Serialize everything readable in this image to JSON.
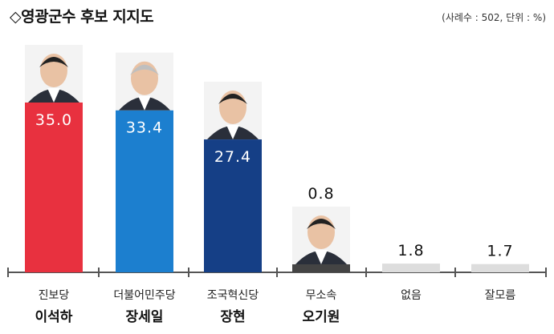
{
  "chart_data": {
    "type": "bar",
    "title": "◇영광군수 후보 지지도",
    "note": "(사례수 : 502, 단위 : %)",
    "categories": [
      "진보당",
      "더불어민주당",
      "조국혁신당",
      "무소속",
      "없음",
      "잘모름"
    ],
    "candidates": [
      "이석하",
      "장세일",
      "장현",
      "오기원",
      "",
      ""
    ],
    "values": [
      35.0,
      33.4,
      27.4,
      0.8,
      1.8,
      1.7
    ],
    "value_labels": [
      "35.0",
      "33.4",
      "27.4",
      "0.8",
      "1.8",
      "1.7"
    ],
    "colors": [
      "#e8313f",
      "#1c7fcf",
      "#153f86",
      "#444444",
      "#dddddd",
      "#dddddd"
    ],
    "label_inside": [
      true,
      true,
      true,
      false,
      false,
      false
    ],
    "photos": [
      true,
      true,
      true,
      true,
      false,
      false
    ],
    "ylim": [
      0,
      35.0
    ],
    "grid": false
  }
}
